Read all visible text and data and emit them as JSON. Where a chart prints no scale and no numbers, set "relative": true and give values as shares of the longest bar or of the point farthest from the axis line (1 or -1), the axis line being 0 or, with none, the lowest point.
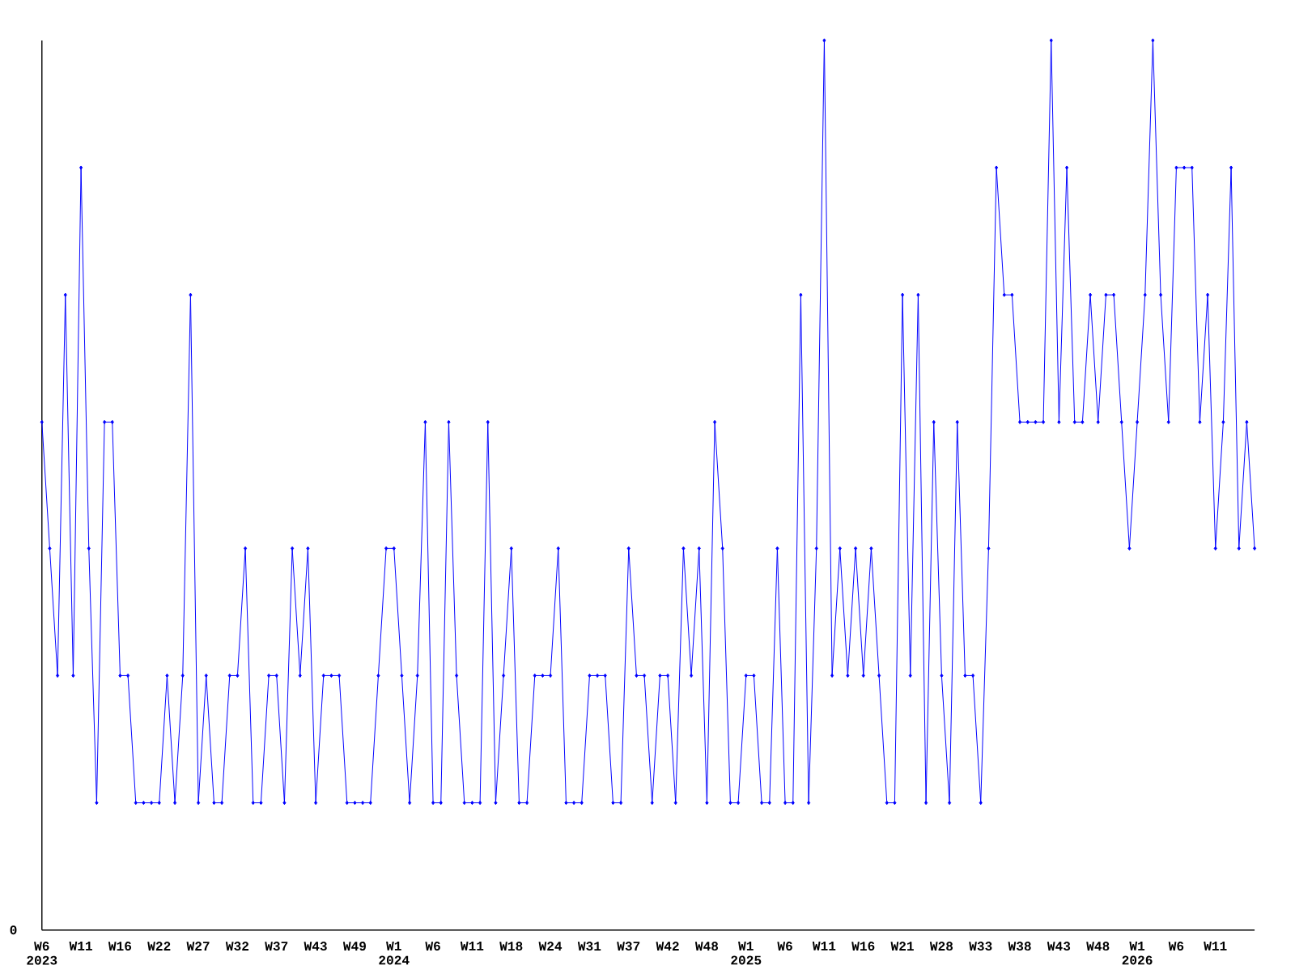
{
  "chart_data": {
    "type": "line",
    "relative": true,
    "color": "#0000ff",
    "marker": "diamond",
    "line_style": "solid",
    "grid": false,
    "annotations": [
      "0"
    ],
    "categories": [
      "W6 2023",
      null,
      null,
      null,
      null,
      "W11",
      null,
      null,
      null,
      null,
      "W16",
      null,
      null,
      null,
      null,
      "W22",
      null,
      null,
      null,
      null,
      "W27",
      null,
      null,
      null,
      null,
      "W32",
      null,
      null,
      null,
      null,
      "W37",
      null,
      null,
      null,
      null,
      "W43",
      null,
      null,
      null,
      null,
      "W49",
      null,
      null,
      null,
      null,
      "W1 2024",
      null,
      null,
      null,
      null,
      "W6",
      null,
      null,
      null,
      null,
      "W11",
      null,
      null,
      null,
      null,
      "W18",
      null,
      null,
      null,
      null,
      "W24",
      null,
      null,
      null,
      null,
      "W31",
      null,
      null,
      null,
      null,
      "W37",
      null,
      null,
      null,
      null,
      "W42",
      null,
      null,
      null,
      null,
      "W48",
      null,
      null,
      null,
      null,
      "W1 2025",
      null,
      null,
      null,
      null,
      "W6",
      null,
      null,
      null,
      null,
      "W11",
      null,
      null,
      null,
      null,
      "W16",
      null,
      null,
      null,
      null,
      "W21",
      null,
      null,
      null,
      null,
      "W28",
      null,
      null,
      null,
      null,
      "W33",
      null,
      null,
      null,
      null,
      "W38",
      null,
      null,
      null,
      null,
      "W43",
      null,
      null,
      null,
      null,
      "W48",
      null,
      null,
      null,
      null,
      "W1 2026",
      null,
      null,
      null,
      null,
      "W6",
      null,
      null,
      null,
      null,
      "W11",
      null,
      null,
      null,
      null,
      null
    ],
    "values": [
      0.571,
      0.429,
      0.286,
      0.714,
      0.286,
      0.857,
      0.429,
      0.143,
      0.571,
      0.571,
      0.286,
      0.286,
      0.143,
      0.143,
      0.143,
      0.143,
      0.286,
      0.143,
      0.286,
      0.714,
      0.143,
      0.286,
      0.143,
      0.143,
      0.286,
      0.286,
      0.429,
      0.143,
      0.143,
      0.286,
      0.286,
      0.143,
      0.429,
      0.286,
      0.429,
      0.143,
      0.286,
      0.286,
      0.286,
      0.143,
      0.143,
      0.143,
      0.143,
      0.286,
      0.429,
      0.429,
      0.286,
      0.143,
      0.286,
      0.571,
      0.143,
      0.143,
      0.571,
      0.286,
      0.143,
      0.143,
      0.143,
      0.571,
      0.143,
      0.286,
      0.429,
      0.143,
      0.143,
      0.286,
      0.286,
      0.286,
      0.429,
      0.143,
      0.143,
      0.143,
      0.286,
      0.286,
      0.286,
      0.143,
      0.143,
      0.429,
      0.286,
      0.286,
      0.143,
      0.286,
      0.286,
      0.143,
      0.429,
      0.286,
      0.429,
      0.143,
      0.571,
      0.429,
      0.143,
      0.143,
      0.286,
      0.286,
      0.143,
      0.143,
      0.429,
      0.143,
      0.143,
      0.714,
      0.143,
      0.429,
      1,
      0.286,
      0.429,
      0.286,
      0.429,
      0.286,
      0.429,
      0.286,
      0.143,
      0.143,
      0.714,
      0.286,
      0.714,
      0.143,
      0.571,
      0.286,
      0.143,
      0.571,
      0.286,
      0.286,
      0.143,
      0.429,
      0.857,
      0.714,
      0.714,
      0.571,
      0.571,
      0.571,
      0.571,
      1,
      0.571,
      0.857,
      0.571,
      0.571,
      0.714,
      0.571,
      0.714,
      0.714,
      0.571,
      0.429,
      0.571,
      0.714,
      1,
      0.714,
      0.571,
      0.857,
      0.857,
      0.857,
      0.571,
      0.714,
      0.429,
      0.571,
      0.857,
      0.429,
      0.571,
      0.429
    ]
  }
}
